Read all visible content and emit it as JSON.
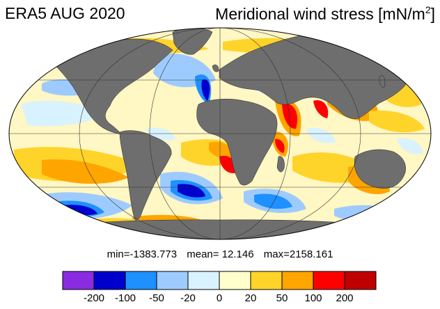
{
  "header": {
    "left_title": "ERA5 AUG 2020",
    "right_title_main": "Meridional wind stress [mN/m",
    "right_title_sup": "2",
    "right_title_end": "]"
  },
  "stats": {
    "min": "min=-1383.773",
    "mean": "mean=  12.146",
    "max": "max=2158.161"
  },
  "legend": {
    "colors": [
      "#8a2be2",
      "#0000cd",
      "#1e90ff",
      "#9ecbff",
      "#d9f2ff",
      "#ffffcc",
      "#ffd42a",
      "#ffa500",
      "#ff0000",
      "#c00000"
    ],
    "labels": [
      "-200",
      "-100",
      "-50",
      "-20",
      "0",
      "20",
      "50",
      "100",
      "200"
    ]
  },
  "colors": {
    "land": "#6e6e6e",
    "ocean_base": "#fff7c4"
  }
}
